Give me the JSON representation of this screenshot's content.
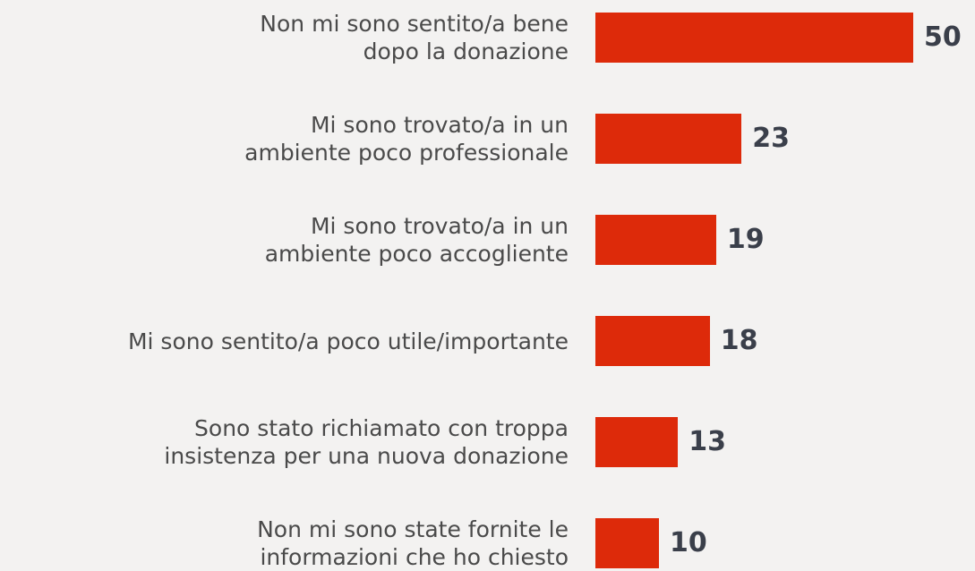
{
  "chart_data": {
    "type": "bar",
    "orientation": "horizontal",
    "categories": [
      "Non mi sono sentito/a bene\ndopo la donazione",
      "Mi sono trovato/a in un\nambiente poco professionale",
      "Mi sono trovato/a in un\nambiente poco accogliente",
      "Mi sono sentito/a poco utile/importante",
      "Sono stato richiamato con troppa\ninsistenza per una nuova donazione",
      "Non mi sono state fornite le\ninformazioni che ho chiesto"
    ],
    "values": [
      50,
      23,
      19,
      18,
      13,
      10
    ],
    "color": "#dd2a0a"
  }
}
